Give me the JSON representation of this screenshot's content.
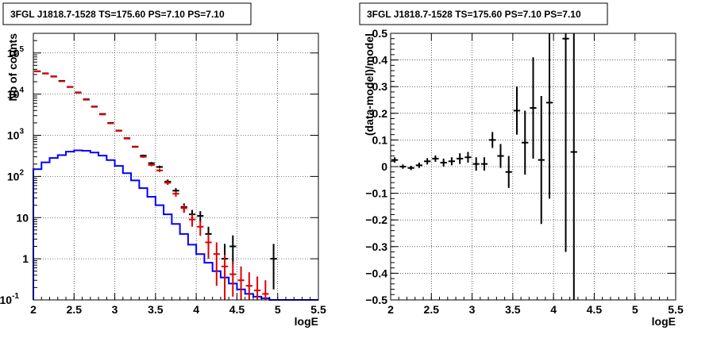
{
  "chart_data": [
    {
      "type": "line",
      "title": "3FGL J1818.7-1528 TS=175.60 PS=7.10 PS=7.10",
      "xlabel": "logE",
      "ylabel": "Nb of counts",
      "xlim": [
        2,
        5.5
      ],
      "ylim": [
        0.1,
        300000
      ],
      "yscale": "log",
      "grid": true,
      "x_ticks": [
        "2",
        "2.5",
        "3",
        "3.5",
        "4",
        "4.5",
        "5",
        "5.5"
      ],
      "y_ticks": [
        {
          "value": 0.1,
          "label": "10",
          "exp": "-1"
        },
        {
          "value": 1,
          "label": "1",
          "exp": ""
        },
        {
          "value": 10,
          "label": "10",
          "exp": ""
        },
        {
          "value": 100,
          "label": "10",
          "exp": "2"
        },
        {
          "value": 1000,
          "label": "10",
          "exp": "3"
        },
        {
          "value": 10000,
          "label": "10",
          "exp": "4"
        },
        {
          "value": 100000,
          "label": "10",
          "exp": "5"
        }
      ],
      "bin_width": 0.1,
      "series": [
        {
          "kind": "step",
          "color": "#0000ff",
          "x": [
            2.05,
            2.15,
            2.25,
            2.35,
            2.45,
            2.55,
            2.65,
            2.75,
            2.85,
            2.95,
            3.05,
            3.15,
            3.25,
            3.35,
            3.45,
            3.55,
            3.65,
            3.75,
            3.85,
            3.95,
            4.05,
            4.15,
            4.25,
            4.35,
            4.45,
            4.55,
            4.65,
            4.75,
            4.85,
            4.95,
            5.05,
            5.15,
            5.25,
            5.35,
            5.45
          ],
          "y": [
            150,
            220,
            280,
            330,
            400,
            430,
            420,
            380,
            320,
            250,
            180,
            120,
            80,
            52,
            32,
            20,
            12,
            7,
            4,
            2.2,
            1.3,
            0.8,
            0.5,
            0.35,
            0.25,
            0.18,
            0.14,
            0.12,
            0.11,
            0.1,
            0.1,
            0.1,
            0.1,
            0.1,
            0.1
          ]
        },
        {
          "kind": "points",
          "color": "#000000",
          "x": [
            2.05,
            2.15,
            2.25,
            2.35,
            2.45,
            2.55,
            2.65,
            2.75,
            2.85,
            2.95,
            3.05,
            3.15,
            3.25,
            3.35,
            3.45,
            3.55,
            3.65,
            3.75,
            3.85,
            3.95,
            4.05,
            4.15,
            4.35,
            4.45,
            4.95
          ],
          "y": [
            36000,
            32000,
            27000,
            21000,
            15000,
            11000,
            7500,
            5000,
            3300,
            2000,
            1300,
            850,
            530,
            320,
            210,
            170,
            75,
            45,
            18,
            12,
            11,
            4,
            1,
            2,
            1
          ],
          "err_lo": [
            200,
            180,
            160,
            150,
            120,
            100,
            90,
            70,
            60,
            45,
            36,
            30,
            23,
            18,
            14,
            13,
            9,
            7,
            4.2,
            3.4,
            3.3,
            2,
            0.82,
            1.27,
            0.82
          ],
          "err_hi": [
            200,
            180,
            160,
            150,
            120,
            100,
            90,
            70,
            60,
            45,
            36,
            30,
            23,
            18,
            14,
            13,
            9,
            7,
            4.2,
            3.4,
            3.3,
            2,
            1.3,
            1.7,
            1.3
          ]
        },
        {
          "kind": "points",
          "color": "#dd0000",
          "x": [
            2.05,
            2.15,
            2.25,
            2.35,
            2.45,
            2.55,
            2.65,
            2.75,
            2.85,
            2.95,
            3.05,
            3.15,
            3.25,
            3.35,
            3.45,
            3.55,
            3.65,
            3.75,
            3.85,
            3.95,
            4.05,
            4.15,
            4.25,
            4.35,
            4.45,
            4.55,
            4.65,
            4.75,
            4.85
          ],
          "y": [
            35500,
            31500,
            26500,
            20500,
            14800,
            10800,
            7300,
            4900,
            3200,
            1950,
            1280,
            830,
            520,
            300,
            190,
            140,
            70,
            38,
            17,
            9,
            6,
            2.5,
            1.3,
            0.65,
            0.42,
            0.3,
            0.22,
            0.17,
            0.14
          ],
          "err_lo": [
            190,
            170,
            160,
            140,
            120,
            100,
            85,
            70,
            57,
            44,
            36,
            29,
            23,
            17,
            14,
            12,
            8,
            6,
            4,
            3,
            2.4,
            1.5,
            1.08,
            0.55,
            0.3,
            0.2,
            0.12,
            0.07,
            0.04
          ],
          "err_hi": [
            190,
            170,
            160,
            140,
            120,
            100,
            85,
            70,
            57,
            44,
            36,
            29,
            23,
            17,
            14,
            12,
            8,
            6,
            4,
            3,
            2.4,
            1.5,
            1.2,
            0.6,
            0.45,
            0.35,
            0.25,
            0.2,
            0.16
          ]
        }
      ]
    },
    {
      "type": "scatter",
      "title": "3FGL J1818.7-1528 TS=175.60 PS=7.10 PS=7.10",
      "xlabel": "logE",
      "ylabel": "(data-model)/model",
      "xlim": [
        2,
        5.5
      ],
      "ylim": [
        -0.5,
        0.5
      ],
      "grid": true,
      "x_ticks": [
        "2",
        "2.5",
        "3",
        "3.5",
        "4",
        "4.5",
        "5",
        "5.5"
      ],
      "y_ticks": [
        "−0.5",
        "−0.4",
        "−0.3",
        "−0.2",
        "−0.1",
        "0",
        "0.1",
        "0.2",
        "0.3",
        "0.4",
        "0.5"
      ],
      "series": [
        {
          "color": "#000000",
          "x": [
            2.05,
            2.15,
            2.25,
            2.35,
            2.45,
            2.55,
            2.65,
            2.75,
            2.85,
            2.95,
            3.05,
            3.15,
            3.25,
            3.35,
            3.45,
            3.55,
            3.65,
            3.75,
            3.85,
            3.95,
            4.15,
            4.25
          ],
          "y": [
            0.025,
            0.0,
            -0.005,
            0.005,
            0.02,
            0.03,
            0.015,
            0.02,
            0.03,
            0.035,
            0.01,
            0.01,
            0.1,
            0.04,
            -0.02,
            0.21,
            0.09,
            0.22,
            0.025,
            0.24,
            0.48,
            0.055
          ],
          "err": [
            0.01,
            0.008,
            0.008,
            0.01,
            0.012,
            0.012,
            0.015,
            0.015,
            0.02,
            0.02,
            0.025,
            0.025,
            0.03,
            0.045,
            0.06,
            0.09,
            0.12,
            0.19,
            0.24,
            0.36,
            0.8,
            1.0
          ]
        }
      ]
    }
  ]
}
